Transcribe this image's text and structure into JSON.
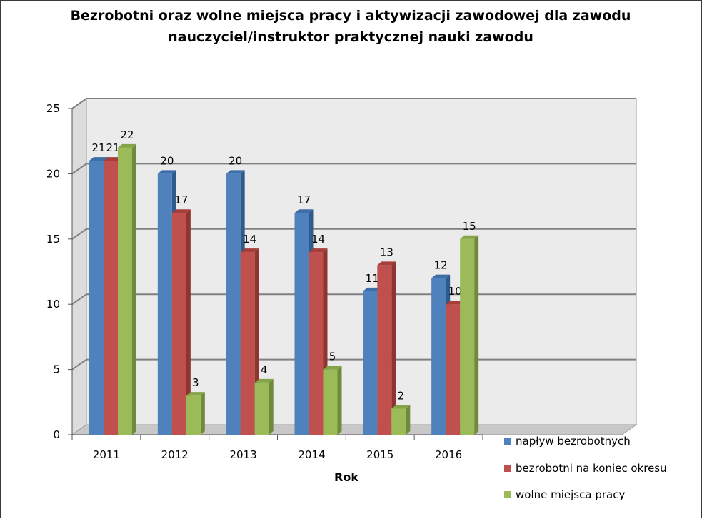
{
  "colors": {
    "series": [
      "#4f81bd",
      "#c0504d",
      "#9bbb59"
    ],
    "series_top": [
      "#3d6ea8",
      "#a43f3c",
      "#85a448"
    ],
    "series_side": [
      "#2f5b8c",
      "#8e3431",
      "#6e8a3a"
    ],
    "wall": "#ebebeb",
    "floor": "#c8c8c8",
    "gridline": "#808080"
  },
  "chart_data": {
    "type": "bar",
    "title": "Bezrobotni oraz wolne miejsca pracy i aktywizacji zawodowej dla zawodu nauczyciel/instruktor praktycznej nauki zawodu",
    "title_lines": [
      "Bezrobotni oraz wolne miejsca pracy i aktywizacji zawodowej dla zawodu",
      "nauczyciel/instruktor praktycznej nauki zawodu"
    ],
    "xlabel": "Rok",
    "ylabel": "",
    "categories": [
      "2011",
      "2012",
      "2013",
      "2014",
      "2015",
      "2016"
    ],
    "series": [
      {
        "name": "napływ bezrobotnych",
        "values": [
          21,
          20,
          20,
          17,
          11,
          12
        ]
      },
      {
        "name": "bezrobotni na koniec okresu",
        "values": [
          21,
          17,
          14,
          14,
          13,
          10
        ]
      },
      {
        "name": "wolne miejsca pracy",
        "values": [
          22,
          3,
          4,
          5,
          2,
          15
        ]
      }
    ],
    "ylim": [
      0,
      25
    ],
    "yticks": [
      0,
      5,
      10,
      15,
      20,
      25
    ],
    "grid": true,
    "legend_position": "bottom-right",
    "data_labels": true
  }
}
